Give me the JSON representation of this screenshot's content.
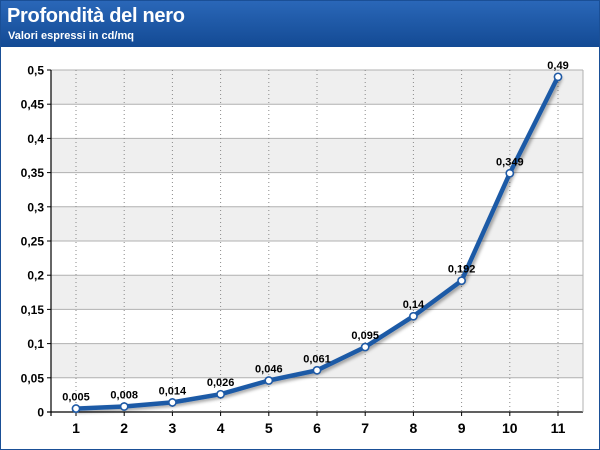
{
  "header": {
    "title": "Profondità del nero",
    "subtitle": "Valori espressi in cd/mq"
  },
  "colors": {
    "header": "#1f5aa6",
    "line": "#1f5aa6",
    "band": "#efefef",
    "marker_fill": "#ffffff"
  },
  "chart_data": {
    "type": "line",
    "title": "Profondità del nero",
    "subtitle": "Valori espressi in cd/mq",
    "x": [
      1,
      2,
      3,
      4,
      5,
      6,
      7,
      8,
      9,
      10,
      11
    ],
    "x_tick_labels": [
      "1",
      "2",
      "3",
      "4",
      "5",
      "6",
      "7",
      "8",
      "9",
      "10",
      "11"
    ],
    "series": [
      {
        "values": [
          0.005,
          0.008,
          0.014,
          0.026,
          0.046,
          0.061,
          0.095,
          0.14,
          0.192,
          0.349,
          0.49
        ],
        "data_labels": [
          "0,005",
          "0,008",
          "0,014",
          "0,026",
          "0,046",
          "0,061",
          "0,095",
          "0,14",
          "0,192",
          "0,349",
          "0,49"
        ]
      }
    ],
    "ylim": [
      0,
      0.5
    ],
    "y_ticks": [
      0,
      0.05,
      0.1,
      0.15,
      0.2,
      0.25,
      0.3,
      0.35,
      0.4,
      0.45,
      0.5
    ],
    "y_tick_labels": [
      "0",
      "0,05",
      "0,1",
      "0,15",
      "0,2",
      "0,25",
      "0,3",
      "0,35",
      "0,4",
      "0,45",
      "0,5"
    ],
    "grid": true,
    "legend": "none"
  }
}
